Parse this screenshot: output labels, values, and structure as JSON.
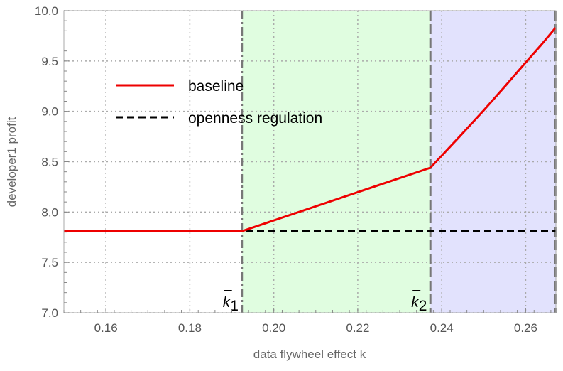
{
  "chart_data": {
    "type": "line",
    "title": "",
    "xlabel": "data flywheel effect k",
    "ylabel": "developer1 profit",
    "xlim": [
      0.15,
      0.2672
    ],
    "ylim": [
      7.0,
      10.0
    ],
    "xticks": [
      0.16,
      0.18,
      0.2,
      0.22,
      0.24,
      0.26
    ],
    "xtick_labels": [
      "0.16",
      "0.18",
      "0.20",
      "0.22",
      "0.24",
      "0.26"
    ],
    "yticks": [
      7.0,
      7.5,
      8.0,
      8.5,
      9.0,
      9.5,
      10.0
    ],
    "ytick_labels": [
      "7.0",
      "7.5",
      "8.0",
      "8.5",
      "9.0",
      "9.5",
      "10.0"
    ],
    "grid": true,
    "legend_position": "top-left",
    "series": [
      {
        "name": "baseline",
        "color": "#ee0000",
        "style": "solid",
        "x": [
          0.15,
          0.1924,
          0.2373,
          0.2436,
          0.2498,
          0.2551,
          0.2603,
          0.2637,
          0.2671
        ],
        "y": [
          7.81,
          7.81,
          8.44,
          8.72,
          9.0,
          9.25,
          9.5,
          9.66,
          9.83
        ]
      },
      {
        "name": "openness regulation",
        "color": "#000000",
        "style": "dashed",
        "x": [
          0.15,
          0.2671
        ],
        "y": [
          7.81,
          7.81
        ]
      }
    ],
    "thresholds": [
      {
        "label": "k1",
        "x": 0.1924
      },
      {
        "label": "k2",
        "x": 0.2373
      }
    ],
    "regions": [
      {
        "from": 0.1924,
        "to": 0.2373,
        "color": "#e0fde0"
      },
      {
        "from": 0.2373,
        "to": 0.2671,
        "color": "#e2e2fd"
      }
    ]
  }
}
